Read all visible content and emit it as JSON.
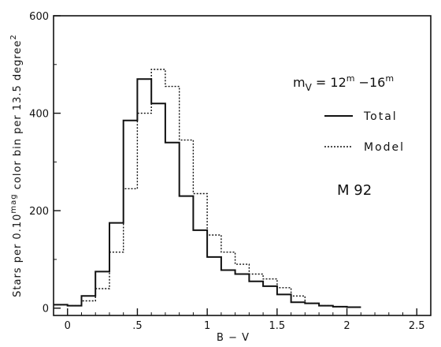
{
  "chart_data": {
    "type": "line",
    "style": "step histogram",
    "xlabel": "B − V",
    "ylabel_parts": {
      "prefix": "Stars per 0.10",
      "sup1": "mag",
      "middle": " color bin per 13.5 degree",
      "sup2": "2"
    },
    "xlim": [
      -0.1,
      2.6
    ],
    "ylim": [
      -15,
      600
    ],
    "x_ticks": [
      0,
      0.5,
      1,
      1.5,
      2,
      2.5
    ],
    "x_tick_labels": [
      "0",
      ".5",
      "1",
      "1.5",
      "2",
      "2.5"
    ],
    "y_ticks": [
      0,
      200,
      400,
      600
    ],
    "y_tick_labels": [
      "0",
      "200",
      "400",
      "600"
    ],
    "bin_width": 0.1,
    "bin_starts": [
      -0.1,
      0.0,
      0.1,
      0.2,
      0.3,
      0.4,
      0.5,
      0.6,
      0.7,
      0.8,
      0.9,
      1.0,
      1.1,
      1.2,
      1.3,
      1.4,
      1.5,
      1.6,
      1.7,
      1.8,
      1.9,
      2.0
    ],
    "series": [
      {
        "name": "Total",
        "line_style": "solid",
        "values": [
          7,
          5,
          25,
          75,
          175,
          385,
          470,
          420,
          340,
          230,
          160,
          105,
          78,
          70,
          55,
          45,
          28,
          12,
          10,
          5,
          3,
          2
        ]
      },
      {
        "name": "Model",
        "line_style": "dotted",
        "values": [
          7,
          5,
          15,
          40,
          115,
          245,
          400,
          490,
          455,
          345,
          235,
          150,
          115,
          90,
          70,
          60,
          42,
          25,
          10,
          5,
          3,
          2
        ]
      }
    ],
    "annotations": {
      "magnitude_range": {
        "m": "m",
        "sub": "V",
        "eq": " = 12",
        "sup1": "m",
        "dash": " −16",
        "sup2": "m"
      },
      "cluster": "M 92"
    },
    "legend_position": "right"
  }
}
